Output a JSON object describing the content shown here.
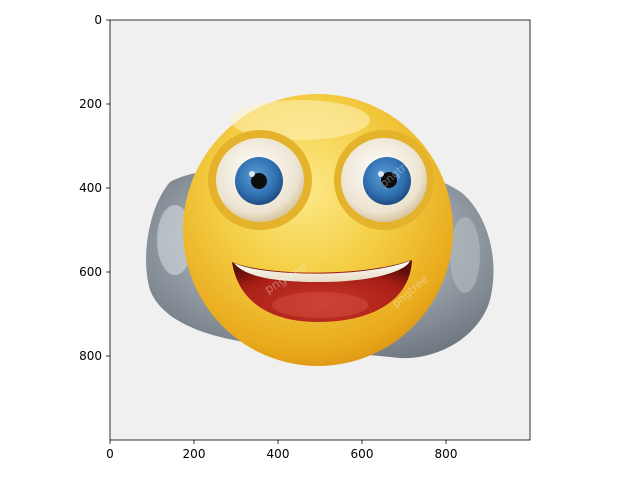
{
  "image": {
    "subject": "3d-smiley-emoji-on-stone",
    "background_color": "#f0f0f0",
    "face_color": "#f2c12e",
    "stone_color": "#9aa3ab",
    "iris_color": "#2f6fb0",
    "mouth_color": "#a81e16",
    "watermark_text": "pngtree"
  },
  "axes": {
    "x_ticks": [
      "0",
      "200",
      "400",
      "600",
      "800"
    ],
    "y_ticks": [
      "0",
      "200",
      "400",
      "600",
      "800"
    ],
    "x_range": [
      0,
      1000
    ],
    "y_range": [
      1000,
      0
    ],
    "y_inverted": true
  }
}
